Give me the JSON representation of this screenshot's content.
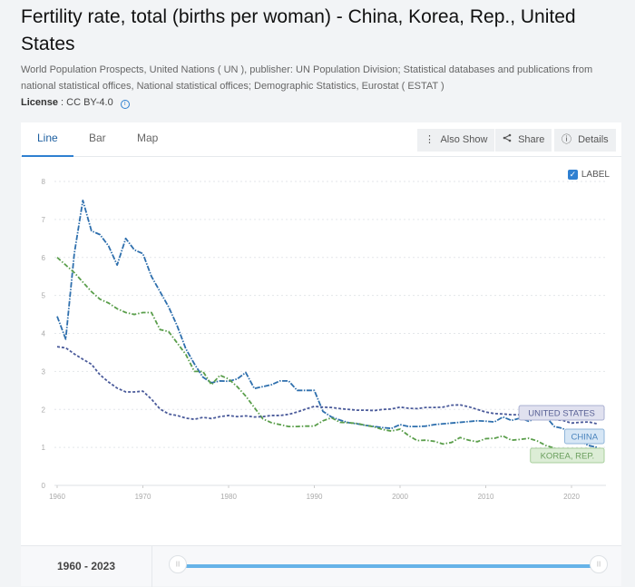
{
  "page": {
    "title": "Fertility rate, total (births per woman) - China, Korea, Rep., United States",
    "source": "World Population Prospects, United Nations ( UN ), publisher: UN Population Division; Statistical databases and publications from national statistical offices, National statistical offices; Demographic Statistics, Eurostat ( ESTAT )",
    "license_label": "License",
    "license_value": ": CC BY-4.0",
    "license_info_icon": "i"
  },
  "tabs": [
    {
      "label": "Line",
      "active": true
    },
    {
      "label": "Bar",
      "active": false
    },
    {
      "label": "Map",
      "active": false
    }
  ],
  "toolbar": {
    "also_show": {
      "icon": "⋮",
      "label": "Also Show"
    },
    "share": {
      "icon": "<",
      "label": "Share"
    },
    "details": {
      "icon": "ⓘ",
      "label": "Details"
    }
  },
  "label_toggle": {
    "label": "LABEL",
    "checked": true,
    "check_glyph": "✓"
  },
  "slider": {
    "range_text": "1960 - 2023",
    "start_year": 1960,
    "end_year": 2023,
    "handle_glyph": "|||"
  },
  "chart_data": {
    "type": "line",
    "title": "Fertility rate, total (births per woman)",
    "xlabel": "",
    "ylabel": "",
    "xlim": [
      1960,
      2023
    ],
    "ylim": [
      0,
      8
    ],
    "x_ticks": [
      1960,
      1970,
      1980,
      1990,
      2000,
      2010,
      2020
    ],
    "y_ticks": [
      0,
      1,
      2,
      3,
      4,
      5,
      6,
      7,
      8
    ],
    "grid": true,
    "legend": "inline-labels-right",
    "x": [
      1960,
      1961,
      1962,
      1963,
      1964,
      1965,
      1966,
      1967,
      1968,
      1969,
      1970,
      1971,
      1972,
      1973,
      1974,
      1975,
      1976,
      1977,
      1978,
      1979,
      1980,
      1981,
      1982,
      1983,
      1984,
      1985,
      1986,
      1987,
      1988,
      1989,
      1990,
      1991,
      1992,
      1993,
      1994,
      1995,
      1996,
      1997,
      1998,
      1999,
      2000,
      2001,
      2002,
      2003,
      2004,
      2005,
      2006,
      2007,
      2008,
      2009,
      2010,
      2011,
      2012,
      2013,
      2014,
      2015,
      2016,
      2017,
      2018,
      2019,
      2020,
      2021,
      2022,
      2023
    ],
    "series": [
      {
        "name": "CHINA",
        "color": "#2e6fad",
        "label_bg": "#d6e6f5",
        "label_border": "#8fb5d9",
        "label_color": "#4a84bd",
        "values": [
          4.45,
          3.85,
          6.1,
          7.5,
          6.7,
          6.6,
          6.3,
          5.8,
          6.5,
          6.2,
          6.1,
          5.5,
          5.1,
          4.7,
          4.2,
          3.6,
          3.2,
          2.85,
          2.7,
          2.75,
          2.74,
          2.8,
          2.97,
          2.55,
          2.6,
          2.65,
          2.75,
          2.75,
          2.5,
          2.5,
          2.5,
          1.95,
          1.8,
          1.72,
          1.65,
          1.62,
          1.58,
          1.55,
          1.52,
          1.5,
          1.6,
          1.55,
          1.55,
          1.56,
          1.6,
          1.62,
          1.64,
          1.66,
          1.68,
          1.7,
          1.69,
          1.67,
          1.8,
          1.71,
          1.77,
          1.69,
          1.77,
          1.81,
          1.55,
          1.5,
          1.28,
          1.16,
          1.05,
          1.0
        ]
      },
      {
        "name": "KOREA, REP.",
        "color": "#5a9e4b",
        "label_bg": "#dcedd6",
        "label_border": "#a8cf9c",
        "label_color": "#6a9e5d",
        "values": [
          6.0,
          5.8,
          5.6,
          5.35,
          5.1,
          4.9,
          4.8,
          4.65,
          4.55,
          4.5,
          4.55,
          4.55,
          4.1,
          4.05,
          3.75,
          3.45,
          3.0,
          3.0,
          2.65,
          2.9,
          2.8,
          2.6,
          2.35,
          2.05,
          1.75,
          1.65,
          1.6,
          1.55,
          1.55,
          1.56,
          1.56,
          1.7,
          1.78,
          1.66,
          1.65,
          1.63,
          1.58,
          1.54,
          1.47,
          1.43,
          1.48,
          1.31,
          1.18,
          1.19,
          1.16,
          1.09,
          1.13,
          1.26,
          1.19,
          1.15,
          1.23,
          1.24,
          1.3,
          1.19,
          1.21,
          1.24,
          1.17,
          1.05,
          0.98,
          0.92,
          0.84,
          0.81,
          0.78,
          0.72
        ]
      },
      {
        "name": "UNITED STATES",
        "color": "#4a5a9a",
        "label_bg": "#e0e1ef",
        "label_border": "#aab0d2",
        "label_color": "#5a6296",
        "values": [
          3.65,
          3.62,
          3.46,
          3.32,
          3.19,
          2.91,
          2.72,
          2.56,
          2.46,
          2.46,
          2.48,
          2.27,
          2.01,
          1.88,
          1.84,
          1.77,
          1.74,
          1.79,
          1.76,
          1.81,
          1.84,
          1.81,
          1.83,
          1.8,
          1.81,
          1.84,
          1.84,
          1.87,
          1.93,
          2.01,
          2.08,
          2.06,
          2.05,
          2.02,
          2.0,
          1.98,
          1.98,
          1.97,
          2.0,
          2.01,
          2.06,
          2.03,
          2.02,
          2.05,
          2.05,
          2.06,
          2.11,
          2.12,
          2.07,
          2.0,
          1.93,
          1.89,
          1.88,
          1.86,
          1.86,
          1.84,
          1.82,
          1.77,
          1.73,
          1.71,
          1.64,
          1.66,
          1.67,
          1.62
        ]
      }
    ]
  }
}
